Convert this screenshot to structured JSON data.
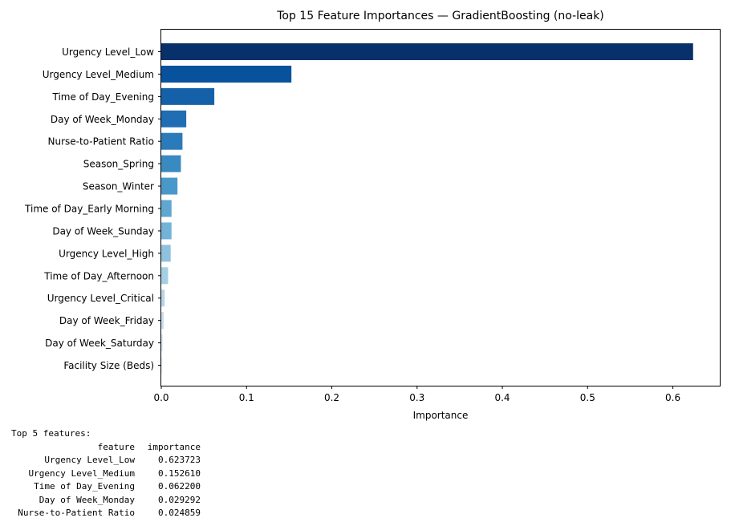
{
  "chart_data": {
    "type": "bar",
    "orientation": "horizontal",
    "title": "Top 15 Feature Importances — GradientBoosting (no-leak)",
    "xlabel": "Importance",
    "ylabel": "",
    "xlim": [
      0,
      0.655
    ],
    "xticks": [
      "0.0",
      "0.1",
      "0.2",
      "0.3",
      "0.4",
      "0.5",
      "0.6"
    ],
    "categories": [
      "Urgency Level_Low",
      "Urgency Level_Medium",
      "Time of Day_Evening",
      "Day of Week_Monday",
      "Nurse-to-Patient Ratio",
      "Season_Spring",
      "Season_Winter",
      "Time of Day_Early Morning",
      "Day of Week_Sunday",
      "Urgency Level_High",
      "Time of Day_Afternoon",
      "Urgency Level_Critical",
      "Day of Week_Friday",
      "Day of Week_Saturday",
      "Facility Size (Beds)"
    ],
    "values": [
      0.623723,
      0.15261,
      0.0622,
      0.029292,
      0.024859,
      0.023,
      0.019,
      0.012,
      0.012,
      0.011,
      0.008,
      0.004,
      0.003,
      0.0015,
      0.001
    ],
    "colors": [
      "#08306b",
      "#08519c",
      "#1561a9",
      "#1f6eb3",
      "#2b7bba",
      "#3a8ac2",
      "#4a98c9",
      "#5fa6d1",
      "#74b3d8",
      "#8fc2de",
      "#a6cee4",
      "#bad6eb",
      "#cbdef1",
      "#d9e7f5",
      "#e3eef9"
    ],
    "grid": false,
    "legend": false
  },
  "console": {
    "heading": "Top 5 features:",
    "columns": [
      "feature",
      "importance"
    ],
    "rows": [
      {
        "feature": "Urgency Level_Low",
        "importance": "0.623723"
      },
      {
        "feature": "Urgency Level_Medium",
        "importance": "0.152610"
      },
      {
        "feature": "Time of Day_Evening",
        "importance": "0.062200"
      },
      {
        "feature": "Day of Week_Monday",
        "importance": "0.029292"
      },
      {
        "feature": "Nurse-to-Patient Ratio",
        "importance": "0.024859"
      }
    ]
  }
}
